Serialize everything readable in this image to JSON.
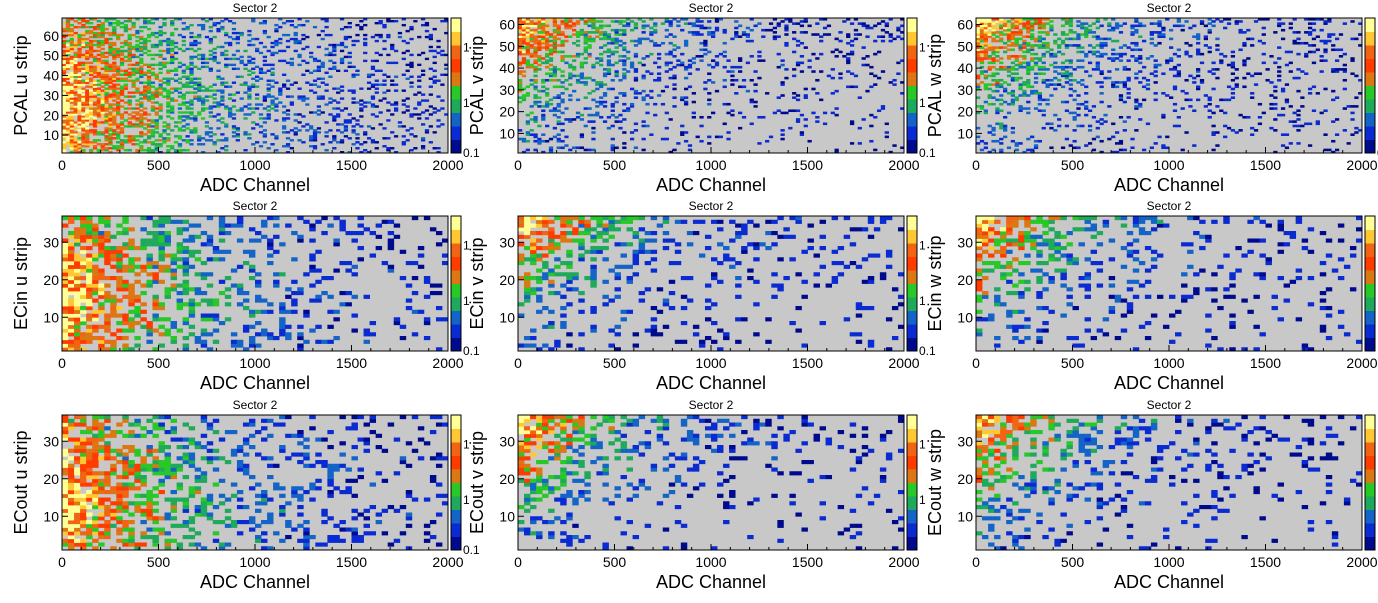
{
  "chart_data": [
    {
      "type": "heatmap",
      "title": "Sector 2",
      "xlabel": "ADC Channel",
      "ylabel": "PCAL u strip",
      "xlim": [
        0,
        2000
      ],
      "ylim": [
        1,
        69
      ],
      "xticks": [
        0,
        500,
        1000,
        1500,
        2000
      ],
      "yticks": [
        10,
        20,
        30,
        40,
        50,
        60
      ],
      "colorbar_ticks": [
        "1",
        "1",
        "0.1"
      ],
      "pattern": "broad",
      "bins": [
        100,
        68
      ]
    },
    {
      "type": "heatmap",
      "title": "Sector 2",
      "xlabel": "ADC Channel",
      "ylabel": "PCAL v strip",
      "xlim": [
        0,
        2000
      ],
      "ylim": [
        1,
        63
      ],
      "xticks": [
        0,
        500,
        1000,
        1500,
        2000
      ],
      "yticks": [
        10,
        20,
        30,
        40,
        50,
        60
      ],
      "colorbar_ticks": [
        "1",
        "1",
        "0.1"
      ],
      "pattern": "top",
      "bins": [
        100,
        62
      ]
    },
    {
      "type": "heatmap",
      "title": "Sector 2",
      "xlabel": "ADC Channel",
      "ylabel": "PCAL w strip",
      "xlim": [
        0,
        2000
      ],
      "ylim": [
        1,
        63
      ],
      "xticks": [
        0,
        500,
        1000,
        1500,
        2000
      ],
      "yticks": [
        10,
        20,
        30,
        40,
        50,
        60
      ],
      "colorbar_ticks": [
        "1",
        "1",
        "0.1"
      ],
      "pattern": "top",
      "bins": [
        100,
        62
      ]
    },
    {
      "type": "heatmap",
      "title": "Sector 2",
      "xlabel": "ADC Channel",
      "ylabel": "ECin u strip",
      "xlim": [
        0,
        2000
      ],
      "ylim": [
        1,
        37
      ],
      "xticks": [
        0,
        500,
        1000,
        1500,
        2000
      ],
      "yticks": [
        10,
        20,
        30
      ],
      "colorbar_ticks": [
        "1",
        "1",
        "0.1"
      ],
      "pattern": "broad",
      "bins": [
        64,
        36
      ]
    },
    {
      "type": "heatmap",
      "title": "Sector 2",
      "xlabel": "ADC Channel",
      "ylabel": "ECin v strip",
      "xlim": [
        0,
        2000
      ],
      "ylim": [
        1,
        37
      ],
      "xticks": [
        0,
        500,
        1000,
        1500,
        2000
      ],
      "yticks": [
        10,
        20,
        30
      ],
      "colorbar_ticks": [
        "1",
        "1",
        "0.1"
      ],
      "pattern": "top",
      "bins": [
        64,
        36
      ]
    },
    {
      "type": "heatmap",
      "title": "Sector 2",
      "xlabel": "ADC Channel",
      "ylabel": "ECin w strip",
      "xlim": [
        0,
        2000
      ],
      "ylim": [
        1,
        37
      ],
      "xticks": [
        0,
        500,
        1000,
        1500,
        2000
      ],
      "yticks": [
        10,
        20,
        30
      ],
      "colorbar_ticks": [],
      "pattern": "top",
      "bins": [
        64,
        36
      ]
    },
    {
      "type": "heatmap",
      "title": "Sector 2",
      "xlabel": "ADC Channel",
      "ylabel": "ECout u strip",
      "xlim": [
        0,
        2000
      ],
      "ylim": [
        1,
        37
      ],
      "xticks": [
        0,
        500,
        1000,
        1500,
        2000
      ],
      "yticks": [
        10,
        20,
        30
      ],
      "colorbar_ticks": [
        "1",
        "1",
        "0.1"
      ],
      "pattern": "broad",
      "bins": [
        64,
        36
      ]
    },
    {
      "type": "heatmap",
      "title": "Sector 2",
      "xlabel": "ADC Channel",
      "ylabel": "ECout v strip",
      "xlim": [
        0,
        2000
      ],
      "ylim": [
        1,
        37
      ],
      "xticks": [
        0,
        500,
        1000,
        1500,
        2000
      ],
      "yticks": [
        10,
        20,
        30
      ],
      "colorbar_ticks": [
        "1",
        "1"
      ],
      "pattern": "top",
      "bins": [
        64,
        36
      ]
    },
    {
      "type": "heatmap",
      "title": "Sector 2",
      "xlabel": "ADC Channel",
      "ylabel": "ECout w strip",
      "xlim": [
        0,
        2000
      ],
      "ylim": [
        1,
        37
      ],
      "xticks": [
        0,
        500,
        1000,
        1500,
        2000
      ],
      "yticks": [
        10,
        20,
        30
      ],
      "colorbar_ticks": [],
      "pattern": "top",
      "bins": [
        64,
        36
      ]
    }
  ],
  "colors": {
    "background": "#c8c8c8",
    "scale": [
      "#000a8c",
      "#0a2ad2",
      "#1464c8",
      "#1eaa5a",
      "#28c828",
      "#dc7814",
      "#ff3c00",
      "#f06414",
      "#ffc832",
      "#ffff96"
    ]
  }
}
